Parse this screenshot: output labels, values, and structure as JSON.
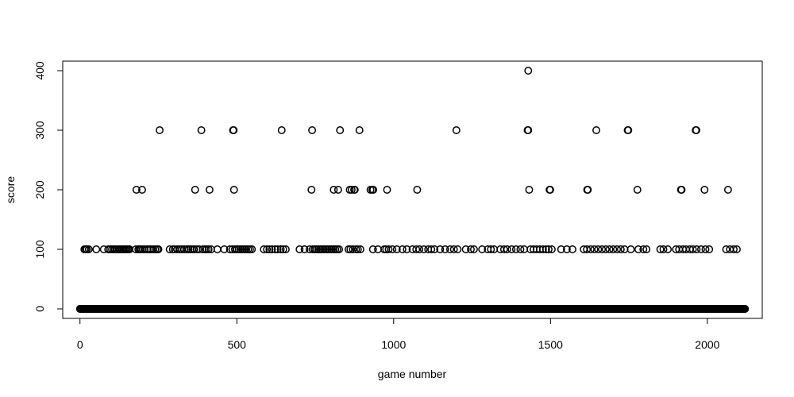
{
  "chart_data": {
    "type": "scatter",
    "title": "",
    "xlabel": "game number",
    "ylabel": "score",
    "xlim": [
      -55,
      2175
    ],
    "ylim": [
      -16,
      416
    ],
    "xticks": [
      0,
      500,
      1000,
      1500,
      2000
    ],
    "yticks": [
      0,
      100,
      200,
      300,
      400
    ],
    "xtick_labels": [
      "0",
      "500",
      "1000",
      "1500",
      "2000"
    ],
    "ytick_labels": [
      "0",
      "100",
      "200",
      "300",
      "400"
    ],
    "grid": false,
    "legend": "none",
    "n_games": 2121,
    "series": [
      {
        "marker": "open-circle",
        "color": "#000000",
        "points_300": [
          254,
          387,
          488,
          490,
          643,
          740,
          829,
          891,
          1200,
          1427,
          1429,
          1646,
          1746,
          1748,
          1963,
          1965
        ],
        "points_200": [
          180,
          198,
          367,
          413,
          491,
          738,
          809,
          823,
          860,
          866,
          874,
          876,
          926,
          932,
          935,
          979,
          1075,
          1432,
          1497,
          1499,
          1617,
          1619,
          1777,
          1916,
          1918,
          1991,
          2066
        ],
        "points_400": [
          1429
        ],
        "points_100": [
          14,
          18,
          22,
          28,
          52,
          76,
          90,
          96,
          102,
          108,
          112,
          118,
          124,
          128,
          134,
          138,
          142,
          146,
          150,
          154,
          158,
          178,
          186,
          190,
          194,
          200,
          206,
          214,
          220,
          226,
          234,
          240,
          246,
          250,
          286,
          296,
          302,
          310,
          318,
          324,
          332,
          340,
          346,
          352,
          358,
          364,
          372,
          380,
          392,
          398,
          404,
          410,
          418,
          438,
          460,
          478,
          486,
          494,
          500,
          506,
          512,
          518,
          524,
          530,
          536,
          542,
          548,
          586,
          596,
          604,
          612,
          622,
          630,
          640,
          648,
          656,
          700,
          716,
          732,
          742,
          748,
          754,
          760,
          766,
          772,
          778,
          784,
          790,
          796,
          802,
          808,
          814,
          820,
          826,
          856,
          862,
          870,
          880,
          886,
          894,
          934,
          950,
          970,
          976,
          984,
          996,
          1010,
          1028,
          1042,
          1060,
          1072,
          1082,
          1096,
          1110,
          1120,
          1130,
          1148,
          1164,
          1180,
          1192,
          1204,
          1230,
          1246,
          1256,
          1282,
          1300,
          1310,
          1320,
          1340,
          1352,
          1362,
          1376,
          1390,
          1404,
          1416,
          1436,
          1446,
          1456,
          1466,
          1476,
          1486,
          1494,
          1504,
          1534,
          1552,
          1570,
          1606,
          1616,
          1628,
          1640,
          1652,
          1664,
          1676,
          1688,
          1700,
          1712,
          1724,
          1736,
          1756,
          1780,
          1796,
          1806,
          1850,
          1860,
          1874,
          1900,
          1910,
          1922,
          1932,
          1944,
          1954,
          1966,
          1980,
          1994,
          2006,
          2060,
          2072,
          2084,
          2094
        ],
        "baseline_value": 0
      }
    ]
  }
}
